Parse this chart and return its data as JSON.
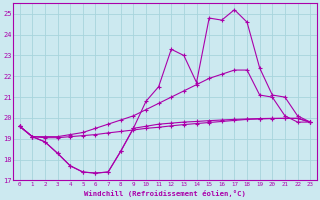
{
  "xlabel": "Windchill (Refroidissement éolien,°C)",
  "xlim": [
    -0.5,
    23.5
  ],
  "ylim": [
    17,
    25.5
  ],
  "yticks": [
    17,
    18,
    19,
    20,
    21,
    22,
    23,
    24,
    25
  ],
  "xticks": [
    0,
    1,
    2,
    3,
    4,
    5,
    6,
    7,
    8,
    9,
    10,
    11,
    12,
    13,
    14,
    15,
    16,
    17,
    18,
    19,
    20,
    21,
    22,
    23
  ],
  "bg_color": "#cce9f0",
  "grid_color": "#a8d4dc",
  "line_color": "#aa00aa",
  "curves": [
    {
      "x": [
        0,
        1,
        2,
        3,
        4,
        5,
        6,
        7,
        8,
        9,
        10,
        11,
        12,
        13,
        14,
        15,
        16,
        17,
        18,
        19,
        20,
        21,
        22,
        23
      ],
      "y": [
        19.6,
        19.1,
        18.85,
        18.3,
        17.7,
        17.4,
        17.35,
        17.4,
        18.4,
        19.5,
        20.8,
        21.5,
        23.3,
        23.0,
        21.7,
        24.8,
        24.7,
        25.2,
        24.6,
        22.4,
        21.1,
        21.0,
        20.1,
        19.8
      ]
    },
    {
      "x": [
        0,
        1,
        2,
        3,
        4,
        5,
        6,
        7,
        8,
        9,
        10,
        11,
        12,
        13,
        14,
        15,
        16,
        17,
        18,
        19,
        20,
        21,
        22,
        23
      ],
      "y": [
        19.6,
        19.1,
        19.1,
        19.1,
        19.2,
        19.3,
        19.5,
        19.7,
        19.9,
        20.1,
        20.4,
        20.7,
        21.0,
        21.3,
        21.6,
        21.9,
        22.1,
        22.3,
        22.3,
        21.1,
        21.0,
        20.1,
        19.8,
        19.8
      ]
    },
    {
      "x": [
        0,
        1,
        2,
        3,
        4,
        5,
        6,
        7,
        8,
        9,
        10,
        11,
        12,
        13,
        14,
        15,
        16,
        17,
        18,
        19,
        20,
        21,
        22,
        23
      ],
      "y": [
        19.6,
        19.1,
        19.05,
        19.05,
        19.1,
        19.15,
        19.2,
        19.28,
        19.35,
        19.42,
        19.5,
        19.55,
        19.62,
        19.68,
        19.73,
        19.78,
        19.83,
        19.88,
        19.93,
        19.95,
        19.97,
        19.98,
        19.98,
        19.8
      ]
    },
    {
      "x": [
        0,
        1,
        2,
        3,
        4,
        5,
        6,
        7,
        8,
        9,
        10,
        11,
        12,
        13,
        14,
        15,
        16,
        17,
        18,
        19,
        20,
        21,
        22,
        23
      ],
      "y": [
        19.6,
        19.1,
        18.85,
        18.3,
        17.7,
        17.4,
        17.35,
        17.4,
        18.4,
        19.5,
        19.6,
        19.7,
        19.75,
        19.8,
        19.83,
        19.87,
        19.9,
        19.93,
        19.95,
        19.97,
        19.98,
        19.98,
        19.98,
        19.8
      ]
    }
  ]
}
